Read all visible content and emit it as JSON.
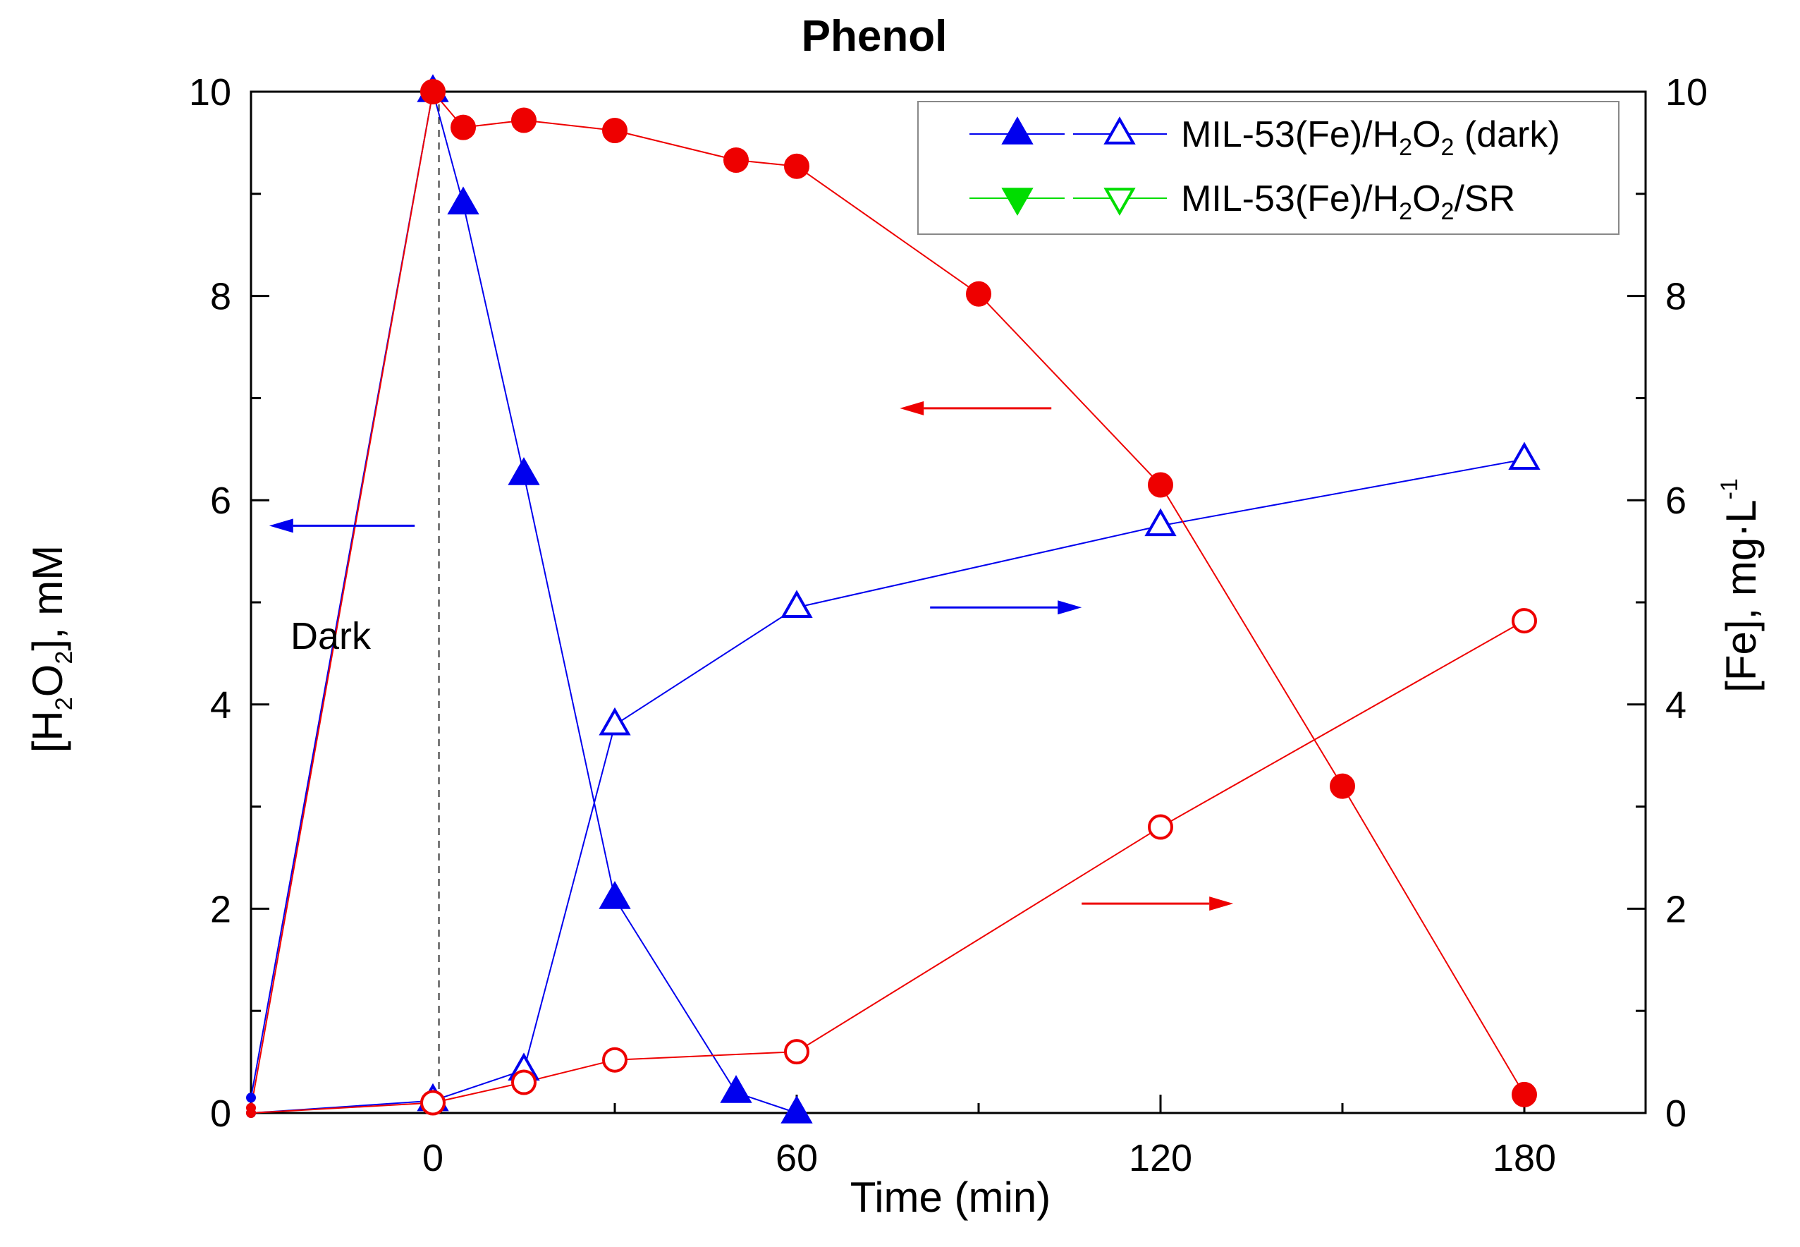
{
  "chart_data": {
    "type": "line",
    "title": "Phenol",
    "xlabel": "Time (min)",
    "ylabel_left": {
      "main": "[H",
      "sub1": "2",
      "mid": "O",
      "sub2": "2",
      "end": "], mM"
    },
    "ylabel_right": {
      "main": "[Fe], mg·L",
      "sup": "-1"
    },
    "xlim": [
      -30,
      200
    ],
    "ylim_left": [
      0,
      10
    ],
    "ylim_right": [
      0,
      10
    ],
    "x_ticks": [
      "0",
      "60",
      "120",
      "180"
    ],
    "x_tick_values": [
      0,
      60,
      120,
      180
    ],
    "y_ticks_left": [
      "0",
      "2",
      "4",
      "6",
      "8",
      "10"
    ],
    "y_ticks_right": [
      "0",
      "2",
      "4",
      "6",
      "8",
      "10"
    ],
    "y_tick_values": [
      0,
      2,
      4,
      6,
      8,
      10
    ],
    "annotation_dark": "Dark",
    "dark_line_x": 1,
    "legend": [
      {
        "name": "MIL-53(Fe)/H2O2 (dark)",
        "pre": "MIL-53(Fe)/H",
        "sub": "2",
        "mid": "O",
        "sub2": "2",
        "post": " (dark)",
        "color": "#0000ee"
      },
      {
        "name": "MIL-53(Fe)/H2O2/SR",
        "pre": "MIL-53(Fe)/H",
        "sub": "2",
        "mid": "O",
        "sub2": "2",
        "post": "/SR",
        "color": "#00dd00"
      }
    ],
    "series": [
      {
        "name": "H2O2 dark (filled blue triangles)",
        "axis": "left",
        "color": "#0000ee",
        "marker": "triangle-up",
        "filled": true,
        "x": [
          -30,
          0,
          5,
          15,
          30,
          50,
          60
        ],
        "y": [
          0.15,
          10.0,
          8.9,
          6.25,
          2.1,
          0.2,
          0.0
        ]
      },
      {
        "name": "Fe dark (open blue triangles)",
        "axis": "right",
        "color": "#0000ee",
        "marker": "triangle-up",
        "filled": false,
        "x": [
          -30,
          0,
          15,
          30,
          60,
          120,
          180
        ],
        "y": [
          0.0,
          0.12,
          0.42,
          3.8,
          4.95,
          5.75,
          6.4
        ]
      },
      {
        "name": "H2O2 SR (filled red circles)",
        "axis": "left",
        "color": "#ee0000",
        "marker": "circle",
        "filled": true,
        "x": [
          -30,
          0,
          5,
          15,
          30,
          50,
          60,
          90,
          120,
          150,
          180
        ],
        "y": [
          0.05,
          10.0,
          9.65,
          9.72,
          9.62,
          9.33,
          9.27,
          8.02,
          6.15,
          3.2,
          0.18
        ]
      },
      {
        "name": "Fe SR (open red circles)",
        "axis": "right",
        "color": "#ee0000",
        "marker": "circle",
        "filled": false,
        "x": [
          -30,
          0,
          15,
          30,
          60,
          120,
          180
        ],
        "y": [
          0.0,
          0.1,
          0.3,
          0.52,
          0.6,
          2.8,
          4.82
        ]
      }
    ],
    "arrows": [
      {
        "color": "#0000ee",
        "x_from": -3,
        "x_to": -27,
        "y": 5.75,
        "axis": "left",
        "direction": "left"
      },
      {
        "color": "#ee0000",
        "x_from": 102,
        "x_to": 77,
        "y": 6.9,
        "axis": "left",
        "direction": "left"
      },
      {
        "color": "#0000ee",
        "x_from": 82,
        "x_to": 107,
        "y": 4.95,
        "axis": "right",
        "direction": "right"
      },
      {
        "color": "#ee0000",
        "x_from": 107,
        "x_to": 132,
        "y": 2.05,
        "axis": "right",
        "direction": "right"
      }
    ]
  }
}
